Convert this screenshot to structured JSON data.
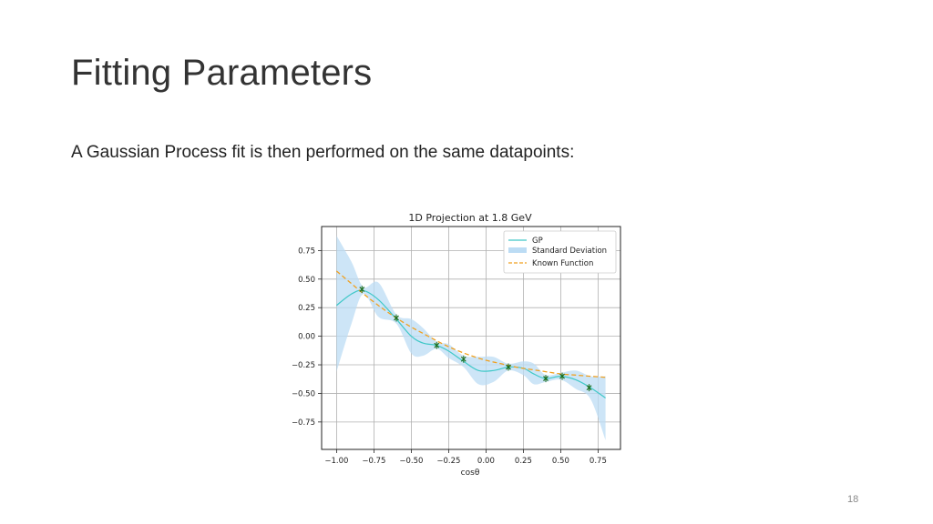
{
  "slide": {
    "title": "Fitting Parameters",
    "body": "A Gaussian Process fit is then performed on the same datapoints:",
    "page_number": "18"
  },
  "colors": {
    "gp_line": "#40c8c8",
    "std_band": "#bcdcf4",
    "known_function": "#f0a020",
    "datapoints": "#1e6e1e"
  },
  "chart_data": {
    "type": "line",
    "title": "1D Projection at 1.8 GeV",
    "xlabel": "cosθ",
    "ylabel": "",
    "xlim": [
      -1.1,
      0.9
    ],
    "ylim": [
      -0.99,
      0.96
    ],
    "xticks": [
      -1.0,
      -0.75,
      -0.5,
      -0.25,
      0.0,
      0.25,
      0.5,
      0.75
    ],
    "xtick_labels": [
      "−1.00",
      "−0.75",
      "−0.50",
      "−0.25",
      "0.00",
      "0.25",
      "0.50",
      "0.75"
    ],
    "yticks": [
      0.75,
      0.5,
      0.25,
      0.0,
      -0.25,
      -0.5,
      -0.75
    ],
    "ytick_labels": [
      "0.75",
      "0.50",
      "0.25",
      "0.00",
      "−0.25",
      "−0.50",
      "−0.75"
    ],
    "grid": true,
    "legend_position": "top-right",
    "legend": [
      "GP",
      "Standard Deviation",
      "Known Function"
    ],
    "series": [
      {
        "name": "GP",
        "kind": "line",
        "x": [
          -1.0,
          -0.9,
          -0.82,
          -0.72,
          -0.6,
          -0.5,
          -0.42,
          -0.33,
          -0.25,
          -0.15,
          -0.05,
          0.05,
          0.15,
          0.25,
          0.32,
          0.4,
          0.5,
          0.6,
          0.7,
          0.8
        ],
        "y": [
          0.27,
          0.37,
          0.4,
          0.32,
          0.15,
          0.0,
          -0.06,
          -0.08,
          -0.13,
          -0.22,
          -0.3,
          -0.3,
          -0.27,
          -0.28,
          -0.33,
          -0.37,
          -0.35,
          -0.38,
          -0.45,
          -0.54
        ]
      },
      {
        "name": "Standard Deviation",
        "kind": "band",
        "x": [
          -1.0,
          -0.9,
          -0.82,
          -0.72,
          -0.6,
          -0.5,
          -0.42,
          -0.33,
          -0.25,
          -0.15,
          -0.05,
          0.05,
          0.15,
          0.25,
          0.32,
          0.4,
          0.5,
          0.6,
          0.7,
          0.8
        ],
        "upper": [
          0.88,
          0.65,
          0.43,
          0.47,
          0.19,
          0.15,
          0.07,
          -0.05,
          -0.07,
          -0.17,
          -0.18,
          -0.18,
          -0.24,
          -0.22,
          -0.24,
          -0.34,
          -0.32,
          -0.3,
          -0.35,
          -0.35
        ],
        "lower": [
          -0.31,
          0.11,
          0.37,
          0.17,
          0.11,
          -0.15,
          -0.17,
          -0.11,
          -0.19,
          -0.27,
          -0.42,
          -0.4,
          -0.3,
          -0.34,
          -0.42,
          -0.4,
          -0.38,
          -0.46,
          -0.55,
          -0.91
        ]
      },
      {
        "name": "Known Function",
        "kind": "dashed-line",
        "x": [
          -1.0,
          -0.9,
          -0.8,
          -0.7,
          -0.6,
          -0.5,
          -0.4,
          -0.3,
          -0.2,
          -0.1,
          0.0,
          0.1,
          0.2,
          0.3,
          0.4,
          0.5,
          0.6,
          0.7,
          0.8
        ],
        "y": [
          0.57,
          0.46,
          0.35,
          0.25,
          0.16,
          0.08,
          0.01,
          -0.06,
          -0.12,
          -0.17,
          -0.21,
          -0.24,
          -0.27,
          -0.29,
          -0.31,
          -0.33,
          -0.34,
          -0.35,
          -0.36
        ]
      },
      {
        "name": "",
        "kind": "points",
        "x": [
          -0.83,
          -0.6,
          -0.33,
          -0.15,
          0.15,
          0.4,
          0.51,
          0.69
        ],
        "y": [
          0.41,
          0.16,
          -0.08,
          -0.2,
          -0.27,
          -0.37,
          -0.35,
          -0.45
        ]
      }
    ]
  }
}
